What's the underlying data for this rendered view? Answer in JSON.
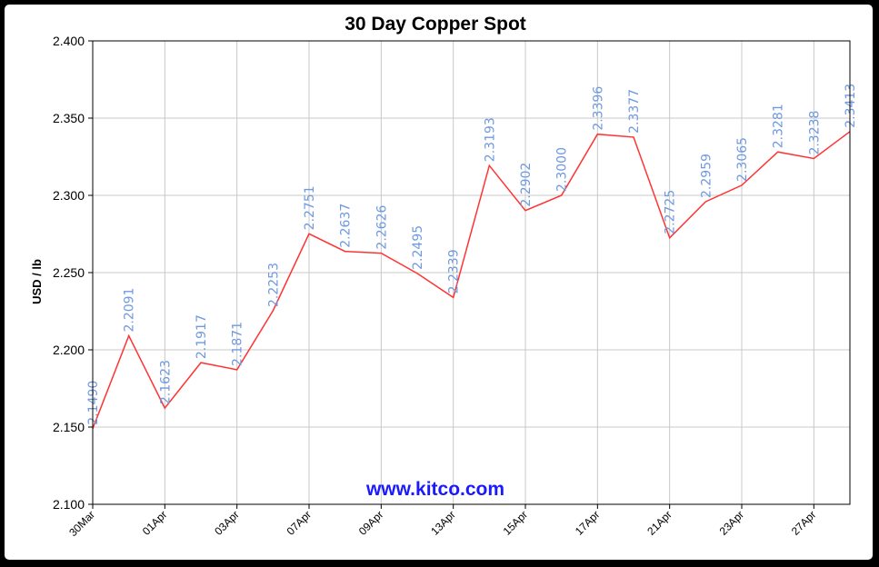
{
  "colors": {
    "background": "#000000",
    "panel": "#ffffff",
    "line": "#ff3333",
    "grid": "#c8c8c8",
    "data_label": "#6f9ae0",
    "watermark": "#1a1aff"
  },
  "chart_data": {
    "type": "line",
    "title": "30 Day Copper Spot",
    "xlabel": "",
    "ylabel": "USD / lb",
    "watermark": "www.kitco.com",
    "ylim": [
      2.1,
      2.4
    ],
    "yticks": [
      "2.100",
      "2.150",
      "2.200",
      "2.250",
      "2.300",
      "2.350",
      "2.400"
    ],
    "xtick_labels": [
      "30Mar",
      "01Apr",
      "03Apr",
      "07Apr",
      "09Apr",
      "13Apr",
      "15Apr",
      "17Apr",
      "21Apr",
      "23Apr",
      "27Apr"
    ],
    "grid": true,
    "series": [
      {
        "values": [
          2.149,
          2.2091,
          2.1623,
          2.1917,
          2.1871,
          2.2253,
          2.2751,
          2.2637,
          2.2626,
          2.2495,
          2.2339,
          2.3193,
          2.2902,
          2.3,
          2.3396,
          2.3377,
          2.2725,
          2.2959,
          2.3065,
          2.3281,
          2.3238,
          2.3413
        ],
        "labels": [
          "2.1490",
          "2.2091",
          "2.1623",
          "2.1917",
          "2.1871",
          "2.2253",
          "2.2751",
          "2.2637",
          "2.2626",
          "2.2495",
          "2.2339",
          "2.3193",
          "2.2902",
          "2.3000",
          "2.3396",
          "2.3377",
          "2.2725",
          "2.2959",
          "2.3065",
          "2.3281",
          "2.3238",
          "2.3413"
        ]
      }
    ]
  }
}
